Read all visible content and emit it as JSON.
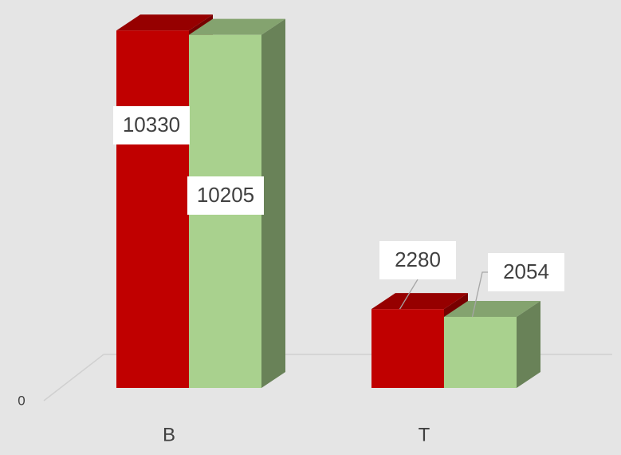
{
  "chart_data": {
    "type": "bar3d",
    "categories": [
      "B",
      "T"
    ],
    "series": [
      {
        "color": "#c00000",
        "values": [
          10330,
          2280
        ]
      },
      {
        "color": "#a9d18e",
        "values": [
          10205,
          2054
        ]
      }
    ],
    "ylim": [
      0,
      10750
    ],
    "yticks": [
      0
    ]
  }
}
